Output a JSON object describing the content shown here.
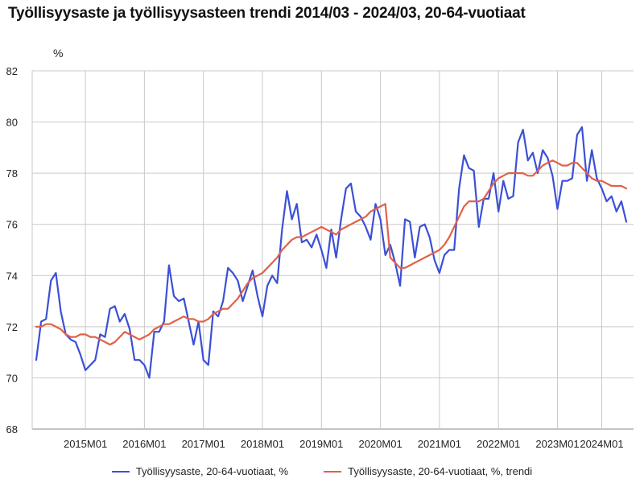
{
  "title": "Työllisyysaste ja työllisyysasteen trendi 2014/03 - 2024/03, 20-64-vuotiaat",
  "colors": {
    "series1": "#3b50d6",
    "series2": "#e0614a",
    "grid": "#c9c9c9",
    "axis": "#888888"
  },
  "chart_data": {
    "type": "line",
    "title": "Työllisyysaste ja työllisyysasteen trendi 2014/03 - 2024/03, 20-64-vuotiaat",
    "ylabel": "%",
    "xlabel": "",
    "ylim": [
      68,
      82
    ],
    "yticks": [
      68,
      70,
      72,
      74,
      76,
      78,
      80,
      82
    ],
    "x_start": "2014M03",
    "x_end": "2024M03",
    "xticks": [
      {
        "index": 10,
        "label": "2015M01"
      },
      {
        "index": 22,
        "label": "2016M01"
      },
      {
        "index": 34,
        "label": "2017M01"
      },
      {
        "index": 46,
        "label": "2018M01"
      },
      {
        "index": 58,
        "label": "2019M01"
      },
      {
        "index": 70,
        "label": "2020M01"
      },
      {
        "index": 82,
        "label": "2021M01"
      },
      {
        "index": 94,
        "label": "2022M01"
      },
      {
        "index": 106,
        "label": "2023M01"
      },
      {
        "index": 115,
        "label": "2024M01"
      }
    ],
    "series": [
      {
        "name": "Työllisyysaste, 20-64-vuotiaat, %",
        "values": [
          70.7,
          72.2,
          72.3,
          73.8,
          74.1,
          72.6,
          71.7,
          71.5,
          71.4,
          70.9,
          70.3,
          70.5,
          70.7,
          71.7,
          71.6,
          72.7,
          72.8,
          72.2,
          72.5,
          71.9,
          70.7,
          70.7,
          70.5,
          70.0,
          71.8,
          71.8,
          72.2,
          74.4,
          73.2,
          73.0,
          73.1,
          72.2,
          71.3,
          72.2,
          70.7,
          70.5,
          72.6,
          72.4,
          73.0,
          74.3,
          74.1,
          73.8,
          73.0,
          73.6,
          74.2,
          73.2,
          72.4,
          73.6,
          74.0,
          73.7,
          75.8,
          77.3,
          76.2,
          76.8,
          75.3,
          75.4,
          75.1,
          75.6,
          75.0,
          74.3,
          75.8,
          74.7,
          76.2,
          77.4,
          77.6,
          76.5,
          76.3,
          75.9,
          75.4,
          76.8,
          76.2,
          74.8,
          75.2,
          74.5,
          73.6,
          76.2,
          76.1,
          74.7,
          75.9,
          76.0,
          75.5,
          74.6,
          74.1,
          74.8,
          75.0,
          75.0,
          77.4,
          78.7,
          78.2,
          78.1,
          75.9,
          77.0,
          77.0,
          78.0,
          76.5,
          77.7,
          77.0,
          77.1,
          79.2,
          79.7,
          78.5,
          78.8,
          78.0,
          78.9,
          78.6,
          77.9,
          76.6,
          77.7,
          77.7,
          77.8,
          79.5,
          79.8,
          77.7,
          78.9,
          77.8,
          77.4,
          76.9,
          77.1,
          76.5,
          76.9,
          76.1
        ]
      },
      {
        "name": "Työllisyysaste, 20-64-vuotiaat, %, trendi",
        "values": [
          72.0,
          72.0,
          72.1,
          72.1,
          72.0,
          71.9,
          71.7,
          71.6,
          71.6,
          71.7,
          71.7,
          71.6,
          71.6,
          71.5,
          71.4,
          71.3,
          71.4,
          71.6,
          71.8,
          71.7,
          71.6,
          71.5,
          71.6,
          71.7,
          71.9,
          72.0,
          72.1,
          72.1,
          72.2,
          72.3,
          72.4,
          72.3,
          72.3,
          72.2,
          72.2,
          72.3,
          72.5,
          72.6,
          72.7,
          72.7,
          72.9,
          73.1,
          73.4,
          73.7,
          73.9,
          74.0,
          74.1,
          74.3,
          74.5,
          74.7,
          75.0,
          75.2,
          75.4,
          75.5,
          75.5,
          75.6,
          75.7,
          75.8,
          75.9,
          75.8,
          75.7,
          75.6,
          75.8,
          75.9,
          76.0,
          76.1,
          76.2,
          76.3,
          76.5,
          76.6,
          76.7,
          76.8,
          74.7,
          74.5,
          74.3,
          74.3,
          74.4,
          74.5,
          74.6,
          74.7,
          74.8,
          74.9,
          75.0,
          75.2,
          75.5,
          75.9,
          76.3,
          76.7,
          76.9,
          76.9,
          76.9,
          77.0,
          77.3,
          77.6,
          77.8,
          77.9,
          78.0,
          78.0,
          78.0,
          78.0,
          77.9,
          77.9,
          78.1,
          78.3,
          78.4,
          78.5,
          78.4,
          78.3,
          78.3,
          78.4,
          78.4,
          78.2,
          78.0,
          77.8,
          77.7,
          77.7,
          77.6,
          77.5,
          77.5,
          77.5,
          77.4
        ]
      }
    ]
  },
  "legend": {
    "item1": "Työllisyysaste, 20-64-vuotiaat, %",
    "item2": "Työllisyysaste, 20-64-vuotiaat, %, trendi"
  }
}
